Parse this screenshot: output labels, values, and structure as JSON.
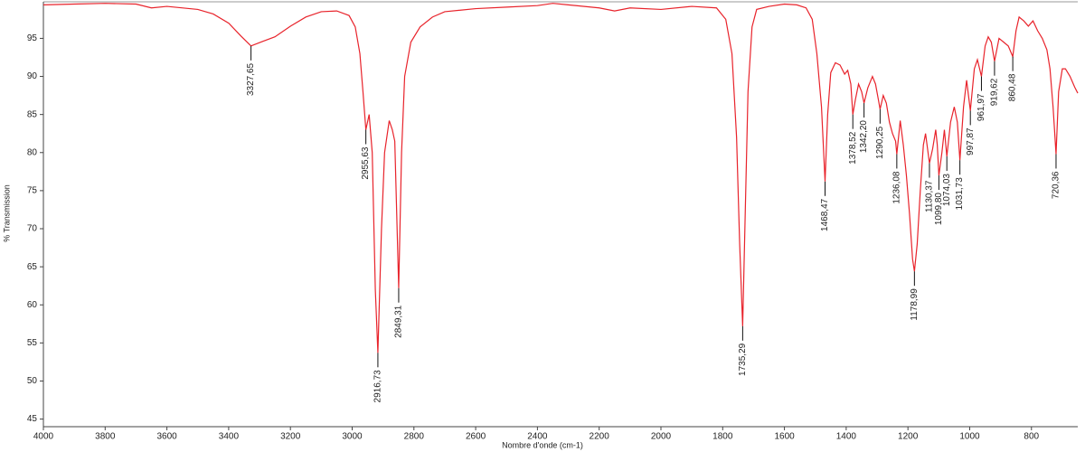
{
  "chart_data": {
    "type": "line",
    "xlabel": "Nombre d'onde (cm-1)",
    "ylabel": "% Transmission",
    "color": "#e8232b",
    "x": [
      4000,
      3900,
      3800,
      3700,
      3650,
      3600,
      3500,
      3450,
      3400,
      3360,
      3327.65,
      3290,
      3250,
      3200,
      3150,
      3100,
      3050,
      3010,
      2990,
      2975,
      2965,
      2955.63,
      2945,
      2935,
      2925,
      2916.73,
      2905,
      2895,
      2880,
      2870,
      2862,
      2849.31,
      2840,
      2830,
      2810,
      2780,
      2740,
      2700,
      2600,
      2500,
      2400,
      2350,
      2300,
      2200,
      2150,
      2100,
      2000,
      1900,
      1820,
      1790,
      1770,
      1755,
      1745,
      1735.29,
      1727,
      1718,
      1705,
      1690,
      1650,
      1600,
      1560,
      1530,
      1510,
      1495,
      1480,
      1468.47,
      1460,
      1450,
      1435,
      1420,
      1405,
      1395,
      1385,
      1378.52,
      1370,
      1360,
      1350,
      1342.2,
      1330,
      1315,
      1305,
      1296,
      1290.25,
      1280,
      1270,
      1260,
      1250,
      1240,
      1236.08,
      1225,
      1215,
      1205,
      1195,
      1185,
      1178.99,
      1170,
      1160,
      1150,
      1143,
      1130.37,
      1120,
      1110,
      1105,
      1099.8,
      1090,
      1082,
      1074.03,
      1062,
      1050,
      1040,
      1031.73,
      1020,
      1010,
      997.87,
      985,
      975,
      961.97,
      950,
      940,
      930,
      919.62,
      905,
      890,
      875,
      860.48,
      850,
      840,
      825,
      810,
      795,
      780,
      765,
      750,
      740,
      730,
      720.36,
      712,
      700,
      690,
      675,
      660,
      650
    ],
    "values": [
      99.4,
      99.5,
      99.6,
      99.5,
      99.0,
      99.2,
      98.8,
      98.2,
      97.0,
      95.3,
      94.0,
      94.6,
      95.2,
      96.6,
      97.8,
      98.5,
      98.6,
      98.0,
      96.5,
      93.0,
      88.0,
      83.0,
      85.0,
      80.0,
      62.0,
      53.7,
      70.0,
      80.0,
      84.2,
      83.0,
      81.5,
      62.2,
      80.0,
      90.0,
      94.5,
      96.5,
      97.8,
      98.5,
      98.9,
      99.1,
      99.3,
      99.6,
      99.4,
      99.0,
      98.6,
      99.0,
      98.8,
      99.2,
      99.0,
      97.5,
      93.0,
      82.0,
      68.0,
      57.2,
      72.0,
      88.0,
      96.5,
      98.8,
      99.2,
      99.5,
      99.4,
      99.0,
      97.5,
      93.0,
      86.0,
      76.2,
      85.0,
      90.5,
      91.8,
      91.5,
      90.3,
      90.8,
      89.0,
      85.0,
      87.0,
      89.0,
      88.0,
      86.5,
      88.5,
      90.0,
      89.0,
      87.0,
      85.7,
      87.5,
      86.5,
      84.0,
      82.5,
      81.5,
      79.8,
      84.2,
      81.0,
      77.0,
      72.0,
      66.0,
      64.4,
      68.0,
      75.0,
      81.0,
      82.5,
      78.6,
      80.5,
      83.0,
      81.0,
      77.0,
      80.0,
      83.0,
      79.5,
      84.0,
      86.0,
      84.0,
      79.0,
      86.0,
      89.5,
      85.5,
      91.0,
      92.2,
      90.0,
      94.0,
      95.2,
      94.5,
      92.0,
      95.0,
      94.5,
      94.0,
      92.6,
      96.0,
      97.8,
      97.3,
      96.6,
      97.3,
      96.0,
      95.0,
      93.5,
      91.0,
      86.0,
      79.8,
      88.0,
      91.0,
      91.0,
      90.0,
      88.6,
      87.8
    ],
    "annotations": [
      {
        "x": 3327.65,
        "y": 94.0,
        "label": "3327,65"
      },
      {
        "x": 2955.63,
        "y": 83.0,
        "label": "2955,63"
      },
      {
        "x": 2916.73,
        "y": 53.7,
        "label": "2916,73"
      },
      {
        "x": 2849.31,
        "y": 62.2,
        "label": "2849,31"
      },
      {
        "x": 1735.29,
        "y": 57.2,
        "label": "1735,29"
      },
      {
        "x": 1468.47,
        "y": 76.2,
        "label": "1468,47"
      },
      {
        "x": 1378.52,
        "y": 85.0,
        "label": "1378,52"
      },
      {
        "x": 1342.2,
        "y": 86.5,
        "label": "1342,20"
      },
      {
        "x": 1290.25,
        "y": 85.7,
        "label": "1290,25"
      },
      {
        "x": 1236.08,
        "y": 79.8,
        "label": "1236,08"
      },
      {
        "x": 1178.99,
        "y": 64.4,
        "label": "1178,99"
      },
      {
        "x": 1130.37,
        "y": 78.6,
        "label": "1130,37"
      },
      {
        "x": 1099.8,
        "y": 77.0,
        "label": "1099,80"
      },
      {
        "x": 1074.03,
        "y": 79.5,
        "label": "1074,03"
      },
      {
        "x": 1031.73,
        "y": 79.0,
        "label": "1031,73"
      },
      {
        "x": 997.87,
        "y": 85.5,
        "label": "997,87"
      },
      {
        "x": 961.97,
        "y": 90.0,
        "label": "961,97"
      },
      {
        "x": 919.62,
        "y": 92.0,
        "label": "919,62"
      },
      {
        "x": 860.48,
        "y": 92.6,
        "label": "860,48"
      },
      {
        "x": 720.36,
        "y": 79.8,
        "label": "720,36"
      }
    ],
    "xlim": [
      4000,
      650
    ],
    "ylim": [
      44,
      99.8
    ],
    "xticks": [
      4000,
      3800,
      3600,
      3400,
      3200,
      3000,
      2800,
      2600,
      2400,
      2200,
      2000,
      1800,
      1600,
      1400,
      1200,
      1000,
      800
    ],
    "yticks": [
      45,
      50,
      55,
      60,
      65,
      70,
      75,
      80,
      85,
      90,
      95
    ],
    "grid": false
  }
}
